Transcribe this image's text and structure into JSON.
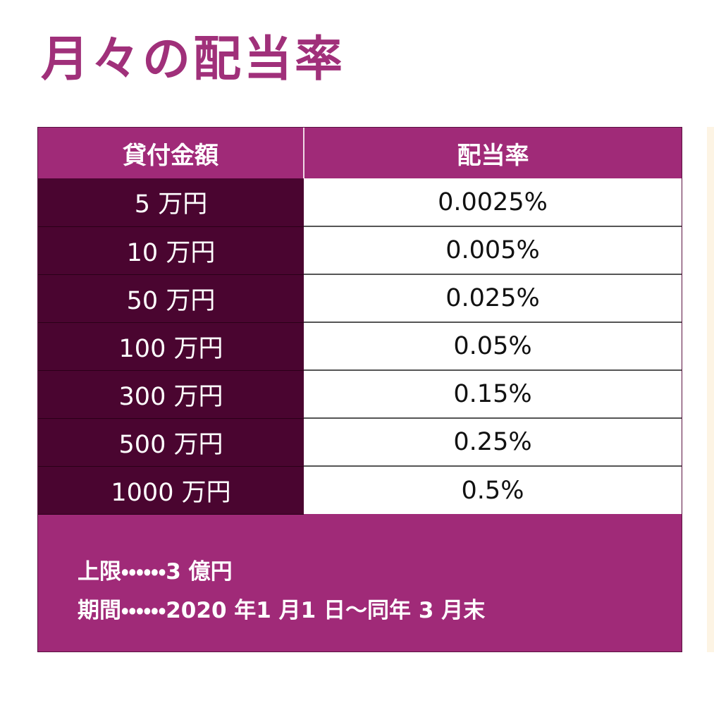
{
  "header": {
    "title": "月々の配当率"
  },
  "table": {
    "columns": [
      "貸付金額",
      "配当率"
    ],
    "rows": [
      [
        "5 万円",
        "0.0025%"
      ],
      [
        "10 万円",
        "0.005%"
      ],
      [
        "50 万円",
        "0.025%"
      ],
      [
        "100 万円",
        "0.05%"
      ],
      [
        "300 万円",
        "0.15%"
      ],
      [
        "500 万円",
        "0.25%"
      ],
      [
        "1000 万円",
        "0.5%"
      ]
    ]
  },
  "notes": [
    "上限・・・・・・3 億円",
    "期間・・・・・・2020 年1 月1 日～同年 3 月末"
  ]
}
